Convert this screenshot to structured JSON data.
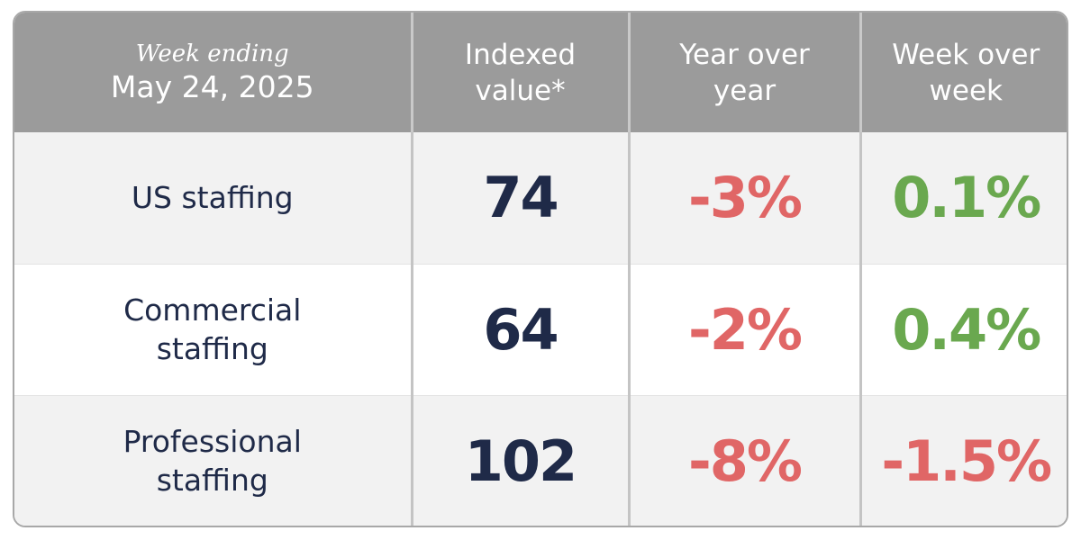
{
  "header": {
    "week_ending_label": "Week ending",
    "week_date": "May 24, 2025",
    "col_indexed": "Indexed value*",
    "col_yoy": "Year over year",
    "col_wow": "Week over week"
  },
  "rows": [
    {
      "label": "US staffing",
      "indexed": "74",
      "yoy": "-3%",
      "wow": "0.1%"
    },
    {
      "label": "Commercial staffing",
      "indexed": "64",
      "yoy": "-2%",
      "wow": "0.4%"
    },
    {
      "label": "Professional staffing",
      "indexed": "102",
      "yoy": "-8%",
      "wow": "-1.5%"
    }
  ],
  "colors": {
    "header_bg": "#9b9b9b",
    "index_text": "#1f2a48",
    "negative": "#e06666",
    "positive": "#6aa84f"
  }
}
